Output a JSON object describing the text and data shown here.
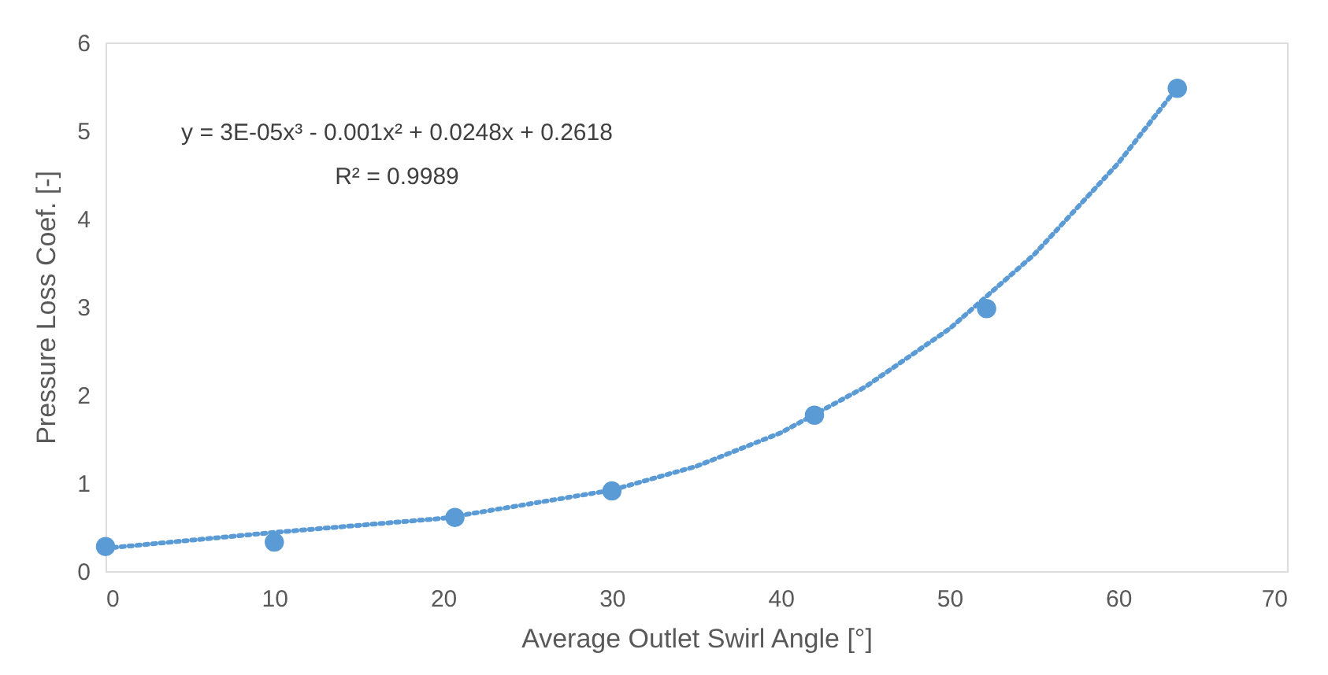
{
  "chart_data": {
    "type": "scatter",
    "xlabel": "Average Outlet Swirl Angle [°]",
    "ylabel": "Pressure Loss Coef. [-]",
    "xlim": [
      0,
      70
    ],
    "xticks": [
      0,
      10,
      20,
      30,
      40,
      50,
      60,
      70
    ],
    "ylim": [
      0,
      6
    ],
    "yticks": [
      0,
      1,
      2,
      3,
      4,
      5,
      6
    ],
    "grid": false,
    "annotations": [
      "y = 3E-05x³ - 0.001x² + 0.0248x + 0.2618",
      "R² = 0.9989"
    ],
    "series": [
      {
        "color": "#5b9bd5",
        "marker": "circle",
        "x": [
          0,
          10,
          20.7,
          30,
          42,
          52.2,
          63.5
        ],
        "values": [
          0.28,
          0.33,
          0.61,
          0.91,
          1.77,
          2.98,
          5.48
        ]
      },
      {
        "type": "line",
        "color": "#5b9bd5",
        "marker": "none",
        "line_style": "dotted",
        "x": [
          0,
          10,
          20,
          30,
          35,
          40,
          45,
          50,
          55,
          60,
          63.5
        ],
        "values": [
          0.26,
          0.44,
          0.6,
          0.92,
          1.19,
          1.57,
          2.09,
          2.75,
          3.59,
          4.63,
          5.49
        ]
      }
    ]
  }
}
